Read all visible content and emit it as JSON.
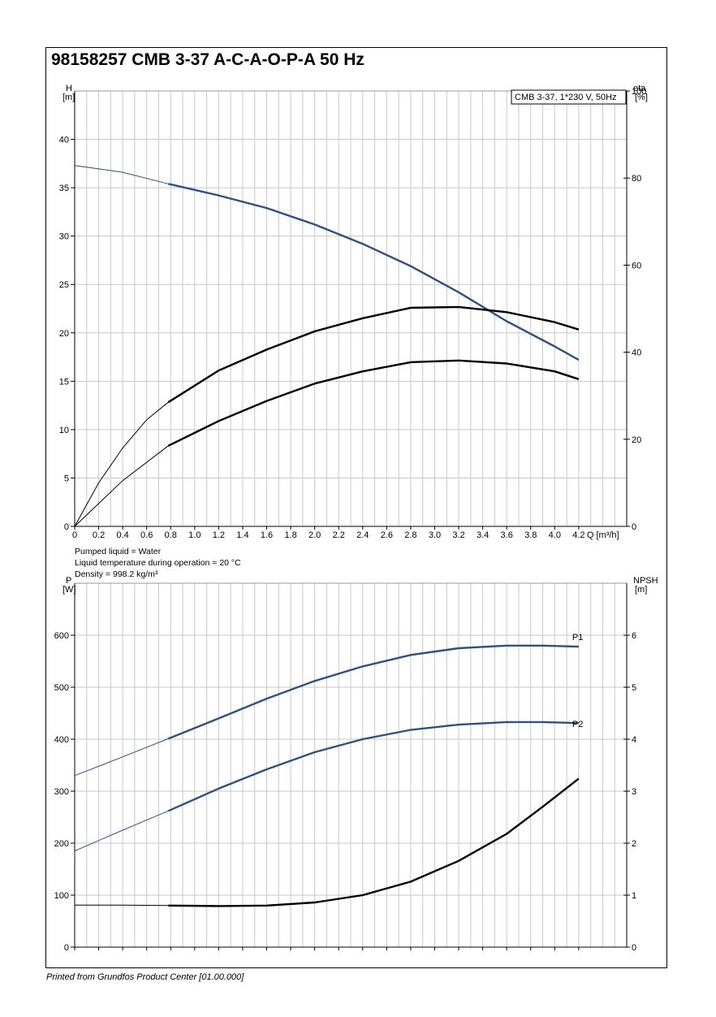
{
  "title": "98158257 CMB 3-37 A-C-A-O-P-A 50 Hz",
  "footer": "Printed from Grundfos Product Center [01.00.000]",
  "colors": {
    "blue": "#2b5283",
    "black": "#000000",
    "grid": "#c8c8c8"
  },
  "chart_data": [
    {
      "type": "line",
      "legend_box": "CMB 3-37, 1*230 V, 50Hz",
      "xlabel": "Q [m³/h]",
      "x_ticks": [
        "0",
        "0.2",
        "0.4",
        "0.6",
        "0.8",
        "1.0",
        "1.2",
        "1.4",
        "1.6",
        "1.8",
        "2.0",
        "2.2",
        "2.4",
        "2.6",
        "2.8",
        "3.0",
        "3.2",
        "3.4",
        "3.6",
        "3.8",
        "4.0",
        "4.2"
      ],
      "xlim": [
        0,
        4.6
      ],
      "ylabel_left": [
        "H",
        "[m]"
      ],
      "ylim_left": [
        0,
        45
      ],
      "yticks_left": [
        "0",
        "5",
        "10",
        "15",
        "20",
        "25",
        "30",
        "35",
        "40"
      ],
      "ylabel_right": [
        "eta",
        "[%]"
      ],
      "ylim_right": [
        0,
        100
      ],
      "yticks_right": [
        "0",
        "20",
        "40",
        "60",
        "80",
        "100"
      ],
      "series": [
        {
          "axis": "left",
          "color": "blue",
          "thin": [
            [
              0,
              37.3
            ],
            [
              0.4,
              36.6
            ],
            [
              0.78,
              35.4
            ]
          ],
          "thick": [
            [
              0.78,
              35.4
            ],
            [
              1.2,
              34.2
            ],
            [
              1.6,
              32.9
            ],
            [
              2.0,
              31.2
            ],
            [
              2.4,
              29.2
            ],
            [
              2.8,
              26.9
            ],
            [
              3.2,
              24.2
            ],
            [
              3.6,
              21.2
            ],
            [
              4.0,
              18.6
            ],
            [
              4.2,
              17.2
            ]
          ]
        },
        {
          "axis": "right",
          "color": "black",
          "thin": [
            [
              0,
              0
            ],
            [
              0.2,
              10
            ],
            [
              0.4,
              18
            ],
            [
              0.6,
              24.5
            ],
            [
              0.78,
              28.5
            ]
          ],
          "thick": [
            [
              0.78,
              28.5
            ],
            [
              1.2,
              35.8
            ],
            [
              1.6,
              40.6
            ],
            [
              2.0,
              44.8
            ],
            [
              2.4,
              47.8
            ],
            [
              2.8,
              50.2
            ],
            [
              3.2,
              50.4
            ],
            [
              3.6,
              49.2
            ],
            [
              4.0,
              46.9
            ],
            [
              4.2,
              45.2
            ]
          ]
        },
        {
          "axis": "right",
          "color": "black",
          "thin": [
            [
              0,
              0
            ],
            [
              0.4,
              10.5
            ],
            [
              0.78,
              18.5
            ]
          ],
          "thick": [
            [
              0.78,
              18.5
            ],
            [
              1.2,
              24.2
            ],
            [
              1.6,
              28.8
            ],
            [
              2.0,
              32.8
            ],
            [
              2.4,
              35.6
            ],
            [
              2.8,
              37.7
            ],
            [
              3.2,
              38.1
            ],
            [
              3.6,
              37.4
            ],
            [
              4.0,
              35.6
            ],
            [
              4.2,
              33.8
            ]
          ]
        }
      ]
    },
    {
      "type": "line",
      "notes": [
        "Pumped liquid = Water",
        "Liquid temperature during operation = 20 °C",
        "Density = 998.2 kg/m³"
      ],
      "xlim": [
        0,
        4.6
      ],
      "ylabel_left": [
        "P",
        "[W]"
      ],
      "ylim_left": [
        0,
        700
      ],
      "yticks_left": [
        "0",
        "100",
        "200",
        "300",
        "400",
        "500",
        "600"
      ],
      "ylabel_right": [
        "NPSH",
        "[m]"
      ],
      "ylim_right": [
        0,
        7
      ],
      "yticks_right": [
        "0",
        "1",
        "2",
        "3",
        "4",
        "5",
        "6"
      ],
      "series": [
        {
          "name": "P1",
          "axis": "left",
          "color": "blue",
          "thin": [
            [
              0,
              330
            ],
            [
              0.4,
              366
            ],
            [
              0.78,
              401
            ]
          ],
          "thick": [
            [
              0.78,
              401
            ],
            [
              1.2,
              440
            ],
            [
              1.6,
              478
            ],
            [
              2.0,
              512
            ],
            [
              2.4,
              540
            ],
            [
              2.8,
              562
            ],
            [
              3.2,
              575
            ],
            [
              3.6,
              580
            ],
            [
              3.9,
              580
            ],
            [
              4.2,
              578
            ]
          ]
        },
        {
          "name": "P2",
          "axis": "left",
          "color": "blue",
          "thin": [
            [
              0,
              185
            ],
            [
              0.4,
              225
            ],
            [
              0.78,
              262
            ]
          ],
          "thick": [
            [
              0.78,
              262
            ],
            [
              1.2,
              305
            ],
            [
              1.6,
              342
            ],
            [
              2.0,
              375
            ],
            [
              2.4,
              400
            ],
            [
              2.8,
              418
            ],
            [
              3.2,
              428
            ],
            [
              3.6,
              433
            ],
            [
              3.9,
              433
            ],
            [
              4.2,
              431
            ]
          ]
        },
        {
          "axis": "right",
          "color": "black",
          "thin": [
            [
              0,
              0.81
            ],
            [
              0.4,
              0.81
            ],
            [
              0.78,
              0.8
            ]
          ],
          "thick": [
            [
              0.78,
              0.8
            ],
            [
              1.2,
              0.79
            ],
            [
              1.6,
              0.8
            ],
            [
              2.0,
              0.86
            ],
            [
              2.4,
              1.0
            ],
            [
              2.8,
              1.26
            ],
            [
              3.2,
              1.66
            ],
            [
              3.6,
              2.18
            ],
            [
              3.9,
              2.7
            ],
            [
              4.2,
              3.24
            ]
          ]
        }
      ]
    }
  ]
}
